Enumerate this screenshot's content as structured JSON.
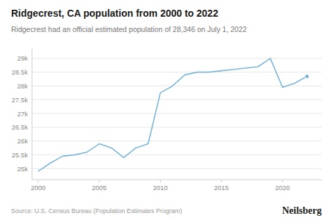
{
  "chart_data": {
    "type": "line",
    "title": "Ridgecrest, CA population from 2000 to 2022",
    "subtitle": "Ridgecrest had an official estimated population of 28,346 on July 1, 2022",
    "source": "Source: U.S. Census Bureau (Population Estimates Program)",
    "brand": "Neilsberg",
    "x": [
      2000,
      2001,
      2002,
      2003,
      2004,
      2005,
      2006,
      2007,
      2008,
      2009,
      2010,
      2011,
      2012,
      2013,
      2014,
      2015,
      2016,
      2017,
      2018,
      2019,
      2020,
      2021,
      2022
    ],
    "values": [
      24900,
      25200,
      25450,
      25500,
      25600,
      25900,
      25750,
      25400,
      25750,
      25900,
      27750,
      28000,
      28400,
      28500,
      28500,
      28550,
      28600,
      28650,
      28700,
      29000,
      27950,
      28100,
      28346
    ],
    "color": "#7ab5d8",
    "xlim": [
      1999.5,
      2023.2
    ],
    "ylim": [
      24600,
      29350
    ],
    "xticks": [
      2000,
      2005,
      2010,
      2015,
      2020
    ],
    "yticks": [
      {
        "value": 25000,
        "label": "25k"
      },
      {
        "value": 25500,
        "label": "25.5k"
      },
      {
        "value": 26000,
        "label": "26k"
      },
      {
        "value": 26500,
        "label": "26.5k"
      },
      {
        "value": 27000,
        "label": "27k"
      },
      {
        "value": 27500,
        "label": "27.5k"
      },
      {
        "value": 28000,
        "label": "28k"
      },
      {
        "value": 28500,
        "label": "28.5k"
      },
      {
        "value": 29000,
        "label": "29k"
      }
    ],
    "grid": true
  }
}
